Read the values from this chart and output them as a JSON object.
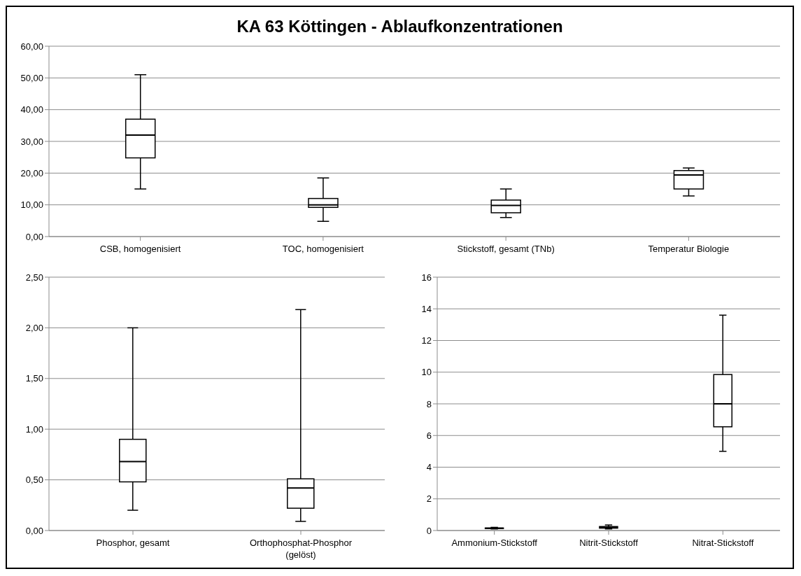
{
  "chart_data": [
    {
      "type": "box",
      "title": "KA 63 Köttingen - Ablaufkonzentrationen",
      "categories": [
        "CSB, homogenisiert",
        "TOC, homogenisiert",
        "Stickstoff, gesamt (TNb)",
        "Temperatur Biologie"
      ],
      "color": "#000000",
      "grid": "y",
      "ylim": [
        0,
        60
      ],
      "yticks": [
        {
          "value": 0,
          "label": "0,00"
        },
        {
          "value": 10,
          "label": "10,00"
        },
        {
          "value": 20,
          "label": "20,00"
        },
        {
          "value": 30,
          "label": "30,00"
        },
        {
          "value": 40,
          "label": "40,00"
        },
        {
          "value": 50,
          "label": "50,00"
        },
        {
          "value": 60,
          "label": "60,00"
        }
      ],
      "boxes": [
        {
          "low": 15,
          "q1": 24.8,
          "median": 32,
          "q3": 37,
          "high": 51
        },
        {
          "low": 4.8,
          "q1": 9.2,
          "median": 10,
          "q3": 12,
          "high": 18.5
        },
        {
          "low": 6,
          "q1": 7.5,
          "median": 9.8,
          "q3": 11.5,
          "high": 15
        },
        {
          "low": 12.8,
          "q1": 15,
          "median": 19.4,
          "q3": 20.8,
          "high": 21.6
        }
      ]
    },
    {
      "type": "box",
      "categories": [
        "Phosphor, gesamt",
        "Orthophosphat-Phosphor (gelöst)"
      ],
      "color": "#000000",
      "grid": "y",
      "ylim": [
        0,
        2.5
      ],
      "yticks": [
        {
          "value": 0,
          "label": "0,00"
        },
        {
          "value": 0.5,
          "label": "0,50"
        },
        {
          "value": 1,
          "label": "1,00"
        },
        {
          "value": 1.5,
          "label": "1,50"
        },
        {
          "value": 2,
          "label": "2,00"
        },
        {
          "value": 2.5,
          "label": "2,50"
        }
      ],
      "boxes": [
        {
          "low": 0.2,
          "q1": 0.48,
          "median": 0.68,
          "q3": 0.9,
          "high": 2.0
        },
        {
          "low": 0.09,
          "q1": 0.22,
          "median": 0.42,
          "q3": 0.51,
          "high": 2.18
        }
      ]
    },
    {
      "type": "box",
      "categories": [
        "Ammonium-Stickstoff",
        "Nitrit-Stickstoff",
        "Nitrat-Stickstoff"
      ],
      "color": "#000000",
      "grid": "y",
      "ylim": [
        0,
        16
      ],
      "yticks": [
        0,
        2,
        4,
        6,
        8,
        10,
        12,
        14,
        16
      ],
      "boxes": [
        {
          "low": 0.1,
          "q1": 0.12,
          "median": 0.14,
          "q3": 0.16,
          "high": 0.2
        },
        {
          "low": 0.1,
          "q1": 0.15,
          "median": 0.2,
          "q3": 0.25,
          "high": 0.35
        },
        {
          "low": 5,
          "q1": 6.55,
          "median": 8,
          "q3": 9.85,
          "high": 13.6
        }
      ]
    }
  ]
}
